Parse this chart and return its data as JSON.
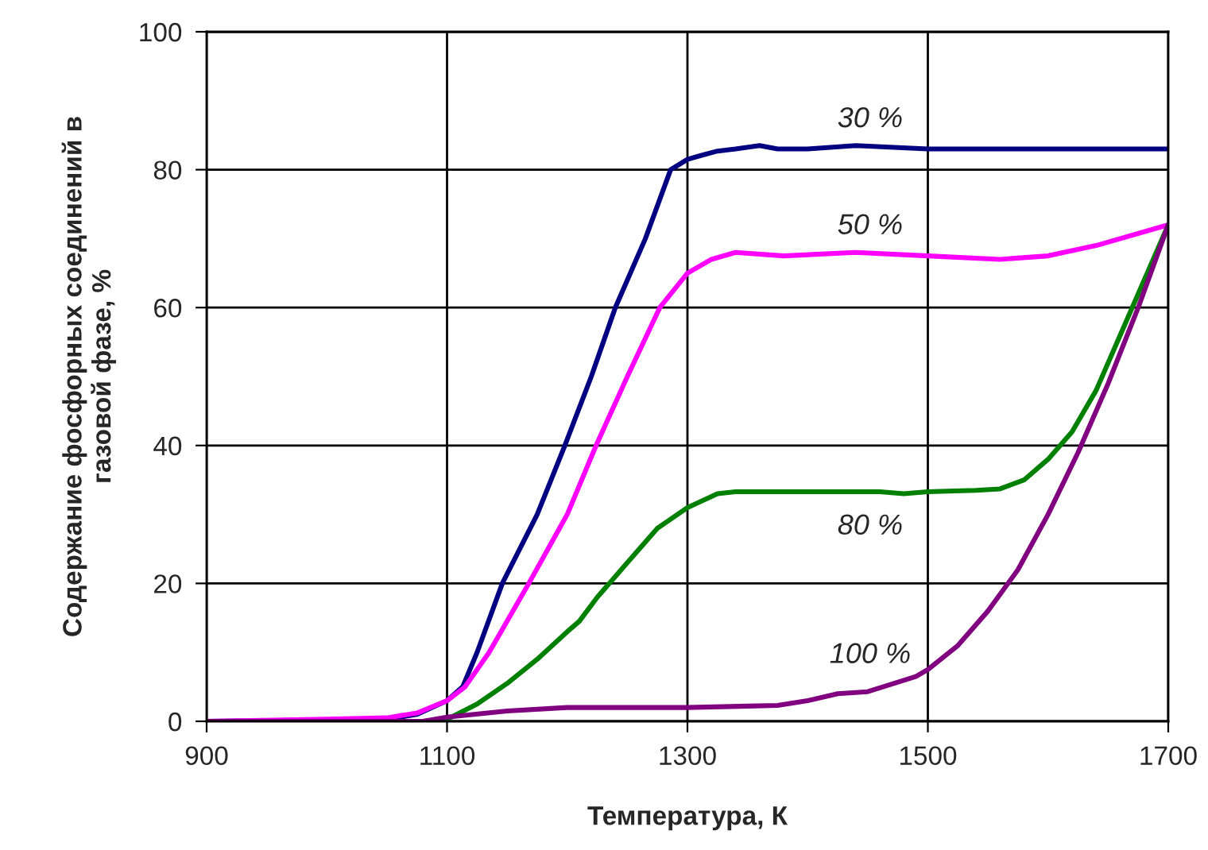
{
  "chart_data": {
    "type": "line",
    "xlabel": "Температура, К",
    "ylabel": "Содержание фосфорных соединений в\nгазовой фазе, %",
    "xlim": [
      900,
      1700
    ],
    "ylim": [
      0,
      100
    ],
    "xticks": [
      900,
      1100,
      1300,
      1500,
      1700
    ],
    "yticks": [
      0,
      20,
      40,
      60,
      80,
      100
    ],
    "grid": true,
    "legend": false,
    "marker": "none",
    "line_style": "solid",
    "series": [
      {
        "name": "30 %",
        "color": "#000080",
        "x": [
          900,
          1000,
          1050,
          1075,
          1100,
          1113,
          1125,
          1146,
          1175,
          1198,
          1220,
          1240,
          1265,
          1286,
          1300,
          1310,
          1325,
          1340,
          1360,
          1375,
          1400,
          1440,
          1500,
          1600,
          1700
        ],
        "values": [
          0,
          0.2,
          0.3,
          1,
          3,
          5,
          10,
          20,
          30,
          40,
          50,
          60,
          70,
          80,
          81.5,
          82,
          82.7,
          83,
          83.5,
          83,
          83,
          83.5,
          83,
          83,
          83
        ]
      },
      {
        "name": "50 %",
        "color": "#ff00ff",
        "x": [
          900,
          1000,
          1050,
          1075,
          1100,
          1115,
          1135,
          1168,
          1200,
          1224,
          1250,
          1277,
          1300,
          1320,
          1340,
          1380,
          1440,
          1500,
          1560,
          1600,
          1640,
          1700
        ],
        "values": [
          0,
          0.3,
          0.5,
          1.2,
          3,
          5,
          10,
          20,
          30,
          40,
          50,
          60,
          65,
          67,
          68,
          67.5,
          68,
          67.5,
          67,
          67.5,
          69,
          72
        ]
      },
      {
        "name": "80 %",
        "color": "#008000",
        "x": [
          900,
          1080,
          1100,
          1125,
          1150,
          1175,
          1200,
          1210,
          1225,
          1250,
          1275,
          1300,
          1325,
          1340,
          1400,
          1460,
          1480,
          1500,
          1540,
          1560,
          1580,
          1600,
          1620,
          1640,
          1660,
          1680,
          1700
        ],
        "values": [
          0,
          0,
          0.3,
          2.5,
          5.5,
          9,
          13,
          14.5,
          18,
          23,
          28,
          31,
          33,
          33.3,
          33.3,
          33.3,
          33,
          33.3,
          33.5,
          33.7,
          35,
          38,
          42,
          48,
          56,
          64,
          72
        ]
      },
      {
        "name": "100 %",
        "color": "#800080",
        "x": [
          900,
          1080,
          1100,
          1150,
          1200,
          1300,
          1350,
          1375,
          1400,
          1425,
          1450,
          1490,
          1500,
          1525,
          1550,
          1575,
          1600,
          1625,
          1650,
          1675,
          1700
        ],
        "values": [
          0,
          0,
          0.6,
          1.5,
          2,
          2,
          2.2,
          2.3,
          3,
          4,
          4.3,
          6.5,
          7.5,
          11,
          16,
          22,
          30,
          39,
          49,
          60,
          72
        ]
      }
    ]
  }
}
